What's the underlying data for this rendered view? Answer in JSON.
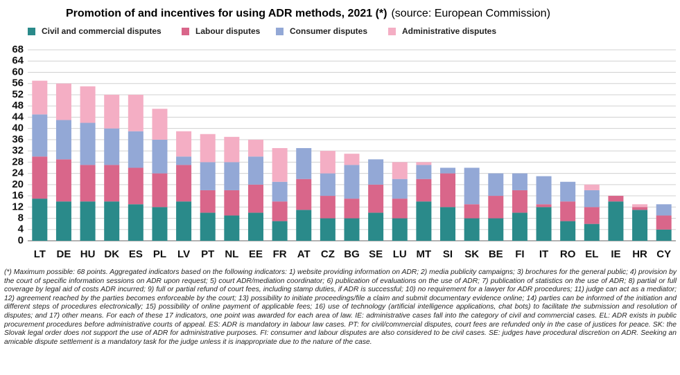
{
  "chart_data": {
    "type": "stacked_bar",
    "title": "Promotion of and incentives for using ADR methods, 2021 (*)",
    "source": "(source: European Commission)",
    "categories": [
      "LT",
      "DE",
      "HU",
      "DK",
      "ES",
      "PL",
      "LV",
      "PT",
      "NL",
      "EE",
      "FR",
      "AT",
      "CZ",
      "BG",
      "SE",
      "LU",
      "MT",
      "SI",
      "SK",
      "BE",
      "FI",
      "IT",
      "RO",
      "EL",
      "IE",
      "HR",
      "CY"
    ],
    "series": [
      {
        "name": "Civil and commercial disputes",
        "color": "#2a8a8a",
        "values": [
          15,
          14,
          14,
          14,
          13,
          12,
          14,
          10,
          9,
          10,
          7,
          11,
          8,
          8,
          10,
          8,
          14,
          12,
          8,
          8,
          10,
          12,
          7,
          6,
          14,
          11,
          4
        ]
      },
      {
        "name": "Labour disputes",
        "color": "#d9668a",
        "values": [
          15,
          15,
          13,
          13,
          13,
          12,
          13,
          8,
          9,
          10,
          7,
          11,
          8,
          7,
          10,
          7,
          8,
          12,
          5,
          8,
          8,
          1,
          7,
          6,
          2,
          1,
          5
        ]
      },
      {
        "name": "Consumer disputes",
        "color": "#93a8d6",
        "values": [
          15,
          14,
          15,
          13,
          13,
          12,
          3,
          10,
          10,
          10,
          7,
          11,
          8,
          12,
          9,
          7,
          5,
          2,
          13,
          8,
          6,
          10,
          7,
          6,
          0,
          0,
          4
        ]
      },
      {
        "name": "Administrative disputes",
        "color": "#f4aec4",
        "values": [
          12,
          13,
          13,
          12,
          13,
          11,
          9,
          10,
          9,
          6,
          12,
          0,
          8,
          4,
          0,
          6,
          1,
          0,
          0,
          0,
          0,
          0,
          0,
          2,
          0,
          1,
          0
        ]
      }
    ],
    "ylim": [
      0,
      68
    ],
    "yticks": [
      0,
      4,
      8,
      12,
      16,
      20,
      24,
      28,
      32,
      36,
      40,
      44,
      48,
      52,
      56,
      60,
      64,
      68
    ],
    "grid": true,
    "note": "(*) Maximum possible: 68 points. Aggregated indicators based on the following indicators: 1) website providing information on ADR; 2) media publicity campaigns; 3) brochures for the general public; 4) provision by the court of specific information sessions on ADR upon request; 5) court ADR/mediation coordinator; 6) publication of evaluations on the use of ADR; 7) publication of statistics on the use of ADR; 8) partial or full coverage by legal aid of costs ADR incurred; 9) full or partial refund of court fees, including stamp duties, if ADR is successful; 10) no requirement for a lawyer for ADR procedures; 11) judge can act as a mediator; 12) agreement reached by the parties becomes enforceable by the court; 13) possibility to initiate proceedings/file a claim and submit documentary evidence online; 14) parties can be informed of the initiation and different steps of procedures electronically; 15) possibility of online payment of applicable fees; 16) use of technology (artificial intelligence applications, chat bots) to facilitate the submission and resolution of disputes; and 17) other means. For each of these 17 indicators, one point was awarded for each area of law. IE: administrative cases fall into the category of civil and commercial cases. EL: ADR exists in public procurement procedures before administrative courts of appeal. ES: ADR is mandatory in labour law cases. PT: for civil/commercial disputes, court fees are refunded only in the case of justices for peace. SK: the Slovak legal order does not support the use of ADR for administrative purposes. FI: consumer and labour disputes are also considered to be civil cases. SE: judges have procedural discretion on ADR. Seeking an amicable dispute settlement is a mandatory task for the judge unless it is inappropriate due to the nature of the case."
  }
}
